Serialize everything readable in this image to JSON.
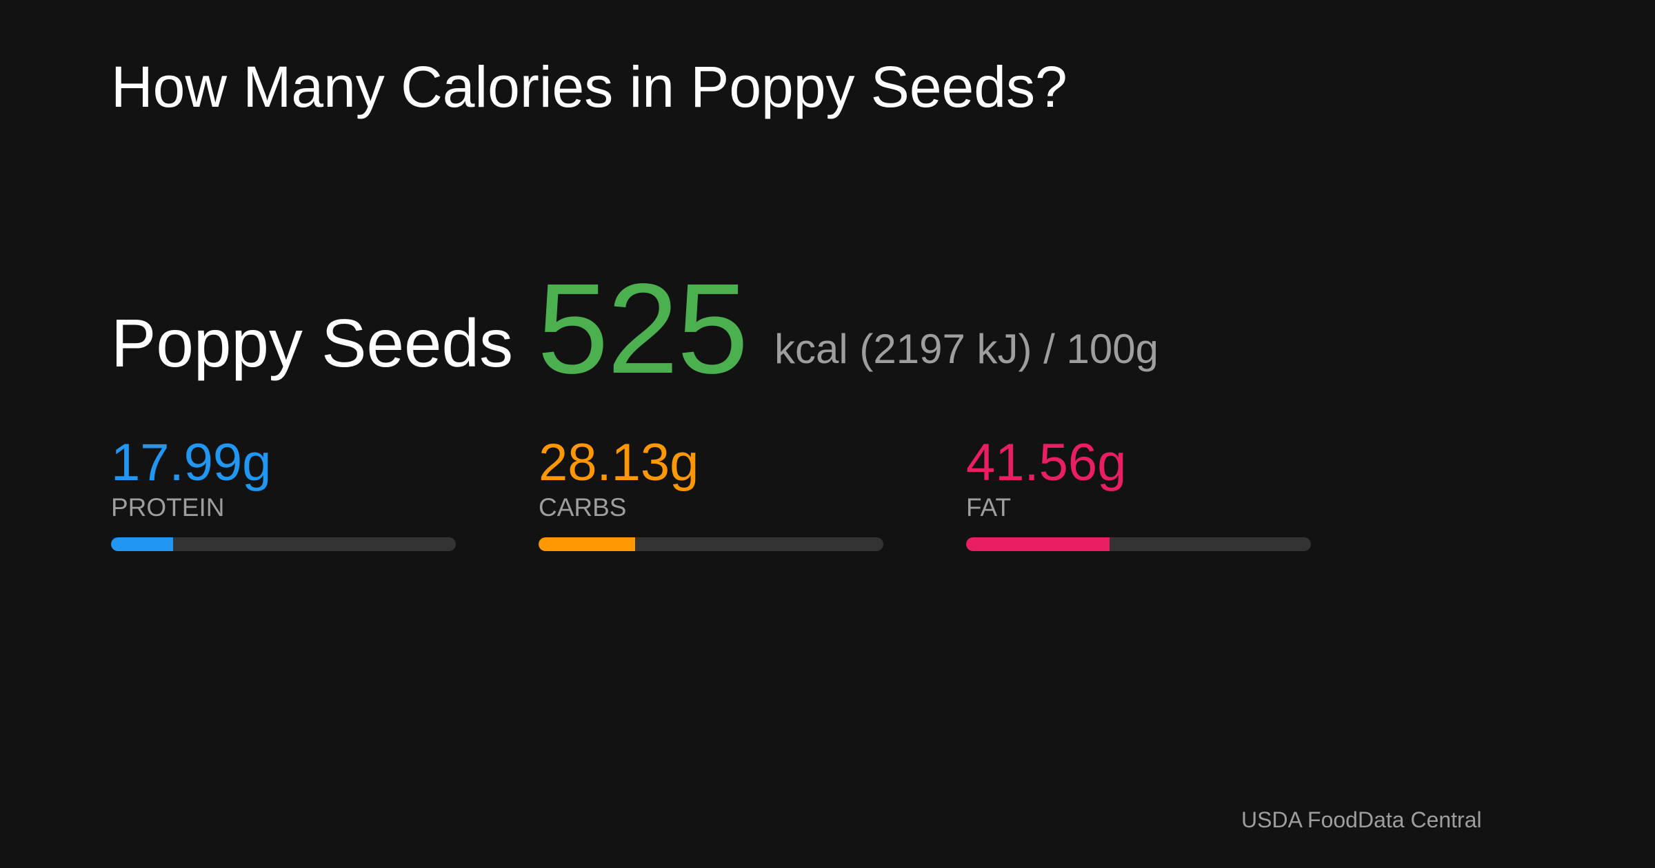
{
  "title": "How Many Calories in Poppy Seeds?",
  "food": {
    "name": "Poppy Seeds",
    "kcal": "525",
    "energy_unit": "kcal (2197 kJ) / 100g",
    "kcal_color": "#4caf50"
  },
  "macros": [
    {
      "value": "17.99g",
      "label": "PROTEIN",
      "color": "#2196f3",
      "fraction": 0.18
    },
    {
      "value": "28.13g",
      "label": "CARBS",
      "color": "#ff9800",
      "fraction": 0.28
    },
    {
      "value": "41.56g",
      "label": "FAT",
      "color": "#e91e63",
      "fraction": 0.416
    }
  ],
  "source": "USDA FoodData Central"
}
